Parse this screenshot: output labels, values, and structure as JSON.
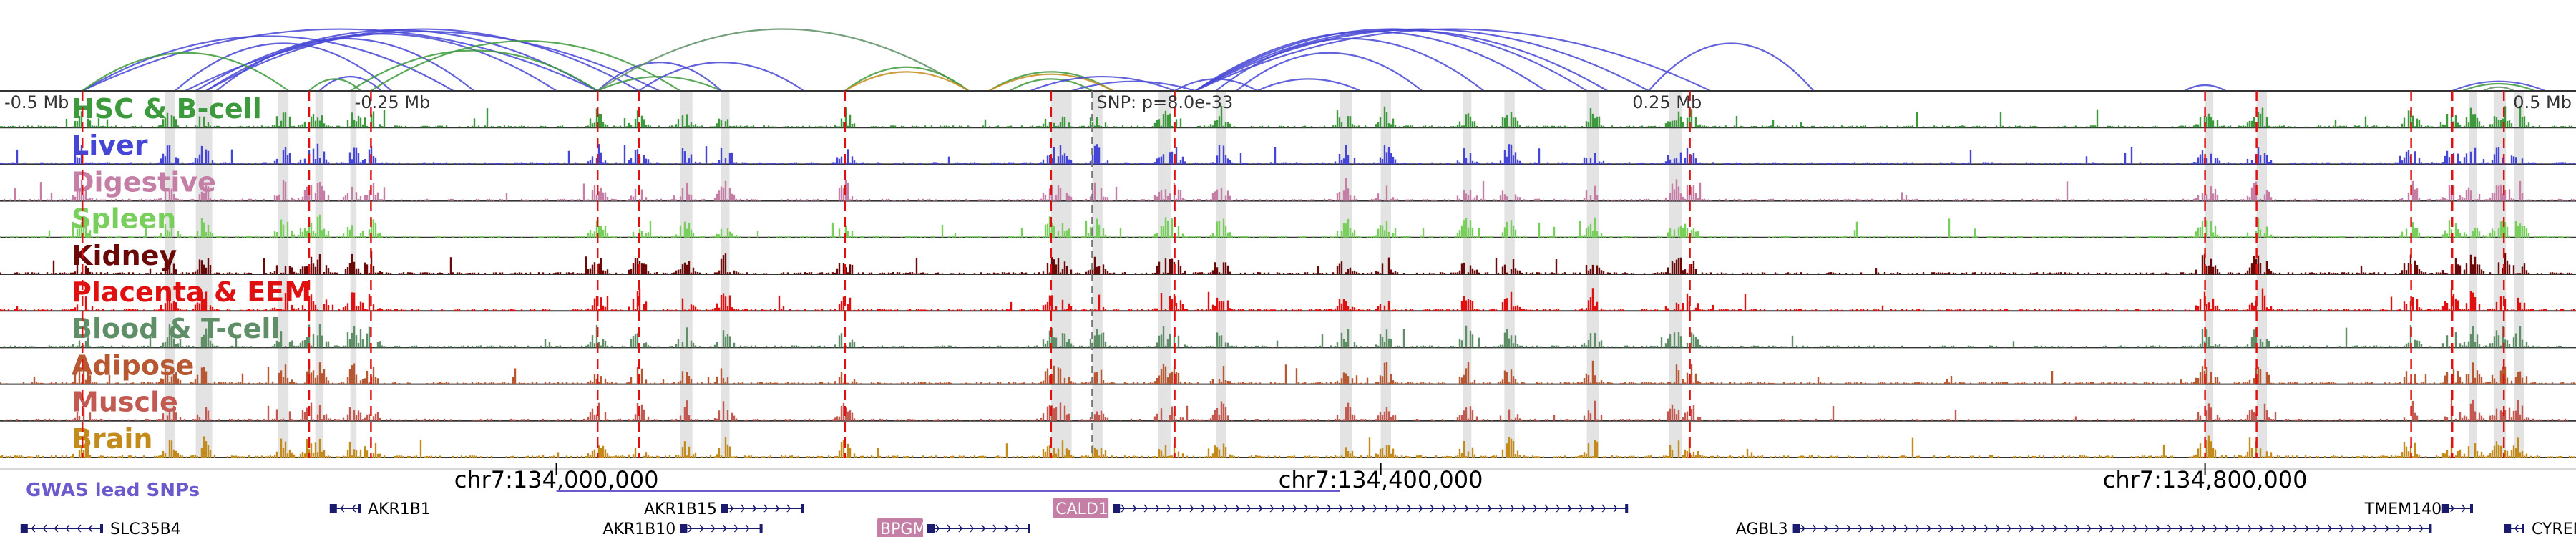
{
  "genome": {
    "chrom": "chr7",
    "start": 133730000,
    "end": 134980000
  },
  "scale_labels": [
    {
      "pos": 133730000,
      "text": "-0.5 Mb",
      "anchor": "start"
    },
    {
      "pos": 133900000,
      "text": "-0.25 Mb",
      "anchor": "start"
    },
    {
      "pos": 134520000,
      "text": "0.25 Mb",
      "anchor": "start"
    },
    {
      "pos": 134980000,
      "text": "0.5 Mb",
      "anchor": "end"
    }
  ],
  "snp": {
    "pos": 134260000,
    "label": "SNP: p=8.0e-33"
  },
  "coordinates": [
    {
      "pos": 134000000,
      "text": "chr7:134,000,000"
    },
    {
      "pos": 134400000,
      "text": "chr7:134,400,000"
    },
    {
      "pos": 134800000,
      "text": "chr7:134,800,000"
    }
  ],
  "tracks": [
    {
      "name": "HSC & B-cell",
      "color": "#3c9a3c"
    },
    {
      "name": "Liver",
      "color": "#4646d6"
    },
    {
      "name": "Digestive",
      "color": "#c57ea6"
    },
    {
      "name": "Spleen",
      "color": "#79cf5c"
    },
    {
      "name": "Kidney",
      "color": "#6b0808"
    },
    {
      "name": "Placenta & EEM",
      "color": "#e01010"
    },
    {
      "name": "Blood & T-cell",
      "color": "#5e8f66"
    },
    {
      "name": "Adipose",
      "color": "#b75833"
    },
    {
      "name": "Muscle",
      "color": "#c25a52"
    },
    {
      "name": "Brain",
      "color": "#c38b1b"
    }
  ],
  "red_lines": [
    133770000,
    133880000,
    133910000,
    134020000,
    134040000,
    134140000,
    134240000,
    134300000,
    134550000,
    134800000,
    134825000,
    134900000,
    134920000,
    134945000
  ],
  "gray_bands": [
    [
      133810000,
      133815000
    ],
    [
      133825000,
      133833000
    ],
    [
      133865000,
      133870000
    ],
    [
      133883000,
      133887000
    ],
    [
      133900000,
      133903000
    ],
    [
      134060000,
      134066000
    ],
    [
      134080000,
      134084000
    ],
    [
      134240000,
      134250000
    ],
    [
      134260000,
      134265000
    ],
    [
      134292000,
      134298000
    ],
    [
      134320000,
      134325000
    ],
    [
      134380000,
      134386000
    ],
    [
      134400000,
      134405000
    ],
    [
      134440000,
      134444000
    ],
    [
      134460000,
      134465000
    ],
    [
      134500000,
      134506000
    ],
    [
      134540000,
      134546000
    ],
    [
      134800000,
      134804000
    ],
    [
      134825000,
      134830000
    ],
    [
      134928000,
      134932000
    ],
    [
      134940000,
      134946000
    ],
    [
      134950000,
      134955000
    ]
  ],
  "arcs": [
    {
      "from": 133770000,
      "to": 133950000,
      "color": "#4646d6",
      "h": 115
    },
    {
      "from": 133770000,
      "to": 134020000,
      "color": "#4646d6",
      "h": 130
    },
    {
      "from": 133815000,
      "to": 133920000,
      "color": "#4646d6",
      "h": 100
    },
    {
      "from": 133820000,
      "to": 134050000,
      "color": "#4646d6",
      "h": 125
    },
    {
      "from": 133825000,
      "to": 134020000,
      "color": "#4646d6",
      "h": 128
    },
    {
      "from": 133830000,
      "to": 134000000,
      "color": "#4646d6",
      "h": 120
    },
    {
      "from": 133830000,
      "to": 134040000,
      "color": "#4646d6",
      "h": 130
    },
    {
      "from": 133835000,
      "to": 133960000,
      "color": "#4646d6",
      "h": 110
    },
    {
      "from": 133885000,
      "to": 133915000,
      "color": "#4646d6",
      "h": 30
    },
    {
      "from": 133770000,
      "to": 133870000,
      "color": "#3c9a3c",
      "h": 80
    },
    {
      "from": 133900000,
      "to": 134020000,
      "color": "#3c9a3c",
      "h": 85
    },
    {
      "from": 133910000,
      "to": 134060000,
      "color": "#3c9a3c",
      "h": 105
    },
    {
      "from": 133880000,
      "to": 133905000,
      "color": "#3c9a3c",
      "h": 25
    },
    {
      "from": 134020000,
      "to": 134080000,
      "color": "#3c9a3c",
      "h": 30
    },
    {
      "from": 134020000,
      "to": 134080000,
      "color": "#4646d6",
      "h": 60
    },
    {
      "from": 134020000,
      "to": 134200000,
      "color": "#5e8f66",
      "h": 130
    },
    {
      "from": 134040000,
      "to": 134120000,
      "color": "#4646d6",
      "h": 60
    },
    {
      "from": 134140000,
      "to": 134200000,
      "color": "#3c9a3c",
      "h": 50
    },
    {
      "from": 134140000,
      "to": 134200000,
      "color": "#c38b1b",
      "h": 40
    },
    {
      "from": 134210000,
      "to": 134270000,
      "color": "#3c9a3c",
      "h": 40
    },
    {
      "from": 134210000,
      "to": 134270000,
      "color": "#c38b1b",
      "h": 35
    },
    {
      "from": 134220000,
      "to": 134260000,
      "color": "#3c9a3c",
      "h": 25
    },
    {
      "from": 134230000,
      "to": 134300000,
      "color": "#4646d6",
      "h": 30
    },
    {
      "from": 134250000,
      "to": 134310000,
      "color": "#4646d6",
      "h": 20
    },
    {
      "from": 134310000,
      "to": 134480000,
      "color": "#4646d6",
      "h": 125
    },
    {
      "from": 134310000,
      "to": 134500000,
      "color": "#4646d6",
      "h": 130
    },
    {
      "from": 134310000,
      "to": 134510000,
      "color": "#4646d6",
      "h": 128
    },
    {
      "from": 134310000,
      "to": 134530000,
      "color": "#4646d6",
      "h": 130
    },
    {
      "from": 134310000,
      "to": 134560000,
      "color": "#4646d6",
      "h": 130
    },
    {
      "from": 134320000,
      "to": 134450000,
      "color": "#4646d6",
      "h": 110
    },
    {
      "from": 134330000,
      "to": 134420000,
      "color": "#4646d6",
      "h": 80
    },
    {
      "from": 134300000,
      "to": 134340000,
      "color": "#4646d6",
      "h": 25
    },
    {
      "from": 134340000,
      "to": 134390000,
      "color": "#4646d6",
      "h": 25
    },
    {
      "from": 134530000,
      "to": 134610000,
      "color": "#4646d6",
      "h": 100
    },
    {
      "from": 134790000,
      "to": 134810000,
      "color": "#4646d6",
      "h": 12
    },
    {
      "from": 134920000,
      "to": 134965000,
      "color": "#4646d6",
      "h": 20
    },
    {
      "from": 134925000,
      "to": 134960000,
      "color": "#3c9a3c",
      "h": 15
    },
    {
      "from": 134935000,
      "to": 134950000,
      "color": "#5e8f66",
      "h": 8
    }
  ],
  "gwas": {
    "label": "GWAS lead SNPs",
    "color": "#6a5acd",
    "line": [
      134000000,
      134380000
    ]
  },
  "genes": [
    {
      "name": "SLC35B4",
      "start": 133740000,
      "end": 133780000,
      "row": 1,
      "strand": "-",
      "label_side": "right"
    },
    {
      "name": "AKR1B1",
      "start": 133890000,
      "end": 133905000,
      "row": 0,
      "strand": "-",
      "label_side": "right"
    },
    {
      "name": "AKR1B15",
      "start": 134080000,
      "end": 134120000,
      "row": 0,
      "strand": "+",
      "label_side": "left"
    },
    {
      "name": "AKR1B10",
      "start": 134060000,
      "end": 134100000,
      "row": 1,
      "strand": "+",
      "label_side": "left"
    },
    {
      "name": "BPGM",
      "start": 134180000,
      "end": 134230000,
      "row": 1,
      "strand": "+",
      "label_side": "left",
      "highlight": true
    },
    {
      "name": "CALD1",
      "start": 134270000,
      "end": 134520000,
      "row": 0,
      "strand": "+",
      "label_side": "left",
      "highlight": true
    },
    {
      "name": "AGBL3",
      "start": 134600000,
      "end": 134910000,
      "row": 1,
      "strand": "+",
      "label_side": "left"
    },
    {
      "name": "TMEM140",
      "start": 134915000,
      "end": 134930000,
      "row": 0,
      "strand": "+",
      "label_side": "left"
    },
    {
      "name": "CYREN",
      "start": 134945000,
      "end": 134955000,
      "row": 1,
      "strand": "-",
      "label_side": "right"
    }
  ]
}
